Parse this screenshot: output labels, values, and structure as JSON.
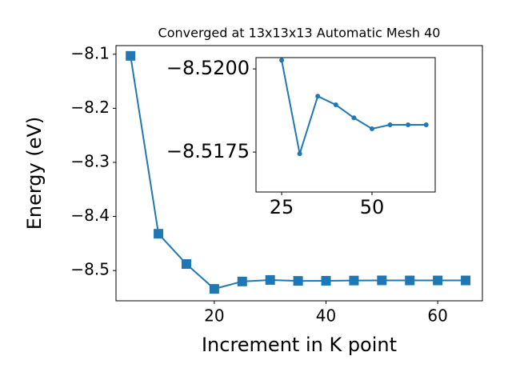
{
  "chart_data": [
    {
      "type": "line",
      "title": "Converged at 13x13x13 Automatic Mesh 40",
      "x_label": "Increment in K point",
      "y_label": "Energy (eV)",
      "x": [
        5,
        10,
        15,
        20,
        25,
        30,
        35,
        40,
        45,
        50,
        55,
        60,
        65
      ],
      "series": [
        {
          "color": "#1f77b4",
          "marker": "square",
          "values": [
            -8.103,
            -8.432,
            -8.488,
            -8.534,
            -8.52026,
            -8.51745,
            -8.51918,
            -8.51892,
            -8.51853,
            -8.5182,
            -8.51832,
            -8.51832,
            -8.51832
          ]
        }
      ],
      "xlim": [
        2.4,
        68.0
      ],
      "ylim": [
        -8.556,
        -8.084
      ],
      "xticks": [
        20,
        40,
        60
      ],
      "yticks": [
        {
          "value": -8.1,
          "label": "−8.1"
        },
        {
          "value": -8.2,
          "label": "−8.2"
        },
        {
          "value": -8.3,
          "label": "−8.3"
        },
        {
          "value": -8.4,
          "label": "−8.4"
        },
        {
          "value": -8.5,
          "label": "−8.5"
        }
      ]
    },
    {
      "type": "line",
      "x": [
        25,
        30,
        35,
        40,
        45,
        50,
        55,
        60,
        65
      ],
      "series": [
        {
          "color": "#1f77b4",
          "marker": "circle",
          "values": [
            -8.52026,
            -8.51745,
            -8.51918,
            -8.51892,
            -8.51853,
            -8.5182,
            -8.51832,
            -8.51832,
            -8.51832
          ]
        }
      ],
      "xlim": [
        17.9,
        67.5
      ],
      "ylim": [
        -8.5163,
        -8.52034
      ],
      "xticks": [
        25,
        50
      ],
      "yticks": [
        {
          "value": -8.52,
          "label": "−8.5200"
        },
        {
          "value": -8.5175,
          "label": "−8.5175"
        }
      ]
    }
  ]
}
